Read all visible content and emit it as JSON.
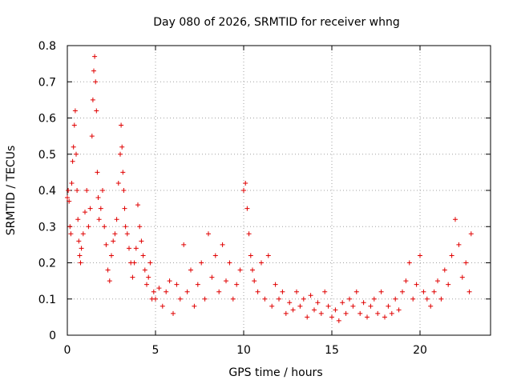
{
  "chart_data": {
    "type": "scatter",
    "title": "Day 080 of 2026, SRMTID for receiver whng",
    "xlabel": "GPS time / hours",
    "ylabel": "SRMTID / TECUs",
    "xlim": [
      0,
      24
    ],
    "ylim": [
      0,
      0.8
    ],
    "xticks": [
      0,
      5,
      10,
      15,
      20
    ],
    "yticks": [
      0,
      0.1,
      0.2,
      0.3,
      0.4,
      0.5,
      0.6,
      0.7,
      0.8
    ],
    "xtick_labels": [
      "0",
      "5",
      "10",
      "15",
      "20"
    ],
    "ytick_labels": [
      "0",
      "0.1",
      "0.2",
      "0.3",
      "0.4",
      "0.5",
      "0.6",
      "0.7",
      "0.8"
    ],
    "grid": true,
    "marker": "plus",
    "color": "#e00000",
    "series": [
      {
        "name": "SRMTID",
        "x": [
          0.0,
          0.05,
          0.1,
          0.15,
          0.2,
          0.25,
          0.3,
          0.35,
          0.4,
          0.45,
          0.5,
          0.55,
          0.6,
          0.65,
          0.7,
          0.75,
          0.8,
          0.9,
          1.0,
          1.1,
          1.2,
          1.3,
          1.4,
          1.45,
          1.5,
          1.55,
          1.6,
          1.65,
          1.7,
          1.75,
          1.8,
          1.9,
          2.0,
          2.1,
          2.2,
          2.3,
          2.4,
          2.5,
          2.6,
          2.7,
          2.8,
          2.9,
          3.0,
          3.05,
          3.1,
          3.15,
          3.2,
          3.25,
          3.3,
          3.4,
          3.5,
          3.6,
          3.7,
          3.8,
          3.9,
          4.0,
          4.1,
          4.2,
          4.3,
          4.4,
          4.5,
          4.6,
          4.7,
          4.8,
          4.9,
          5.0,
          5.2,
          5.4,
          5.6,
          5.8,
          6.0,
          6.2,
          6.4,
          6.6,
          6.8,
          7.0,
          7.2,
          7.4,
          7.6,
          7.8,
          8.0,
          8.2,
          8.4,
          8.6,
          8.8,
          9.0,
          9.2,
          9.4,
          9.6,
          9.8,
          10.0,
          10.1,
          10.2,
          10.3,
          10.4,
          10.5,
          10.6,
          10.8,
          11.0,
          11.2,
          11.4,
          11.6,
          11.8,
          12.0,
          12.2,
          12.4,
          12.6,
          12.8,
          13.0,
          13.2,
          13.4,
          13.6,
          13.8,
          14.0,
          14.2,
          14.4,
          14.6,
          14.8,
          15.0,
          15.2,
          15.4,
          15.6,
          15.8,
          16.0,
          16.2,
          16.4,
          16.6,
          16.8,
          17.0,
          17.2,
          17.4,
          17.6,
          17.8,
          18.0,
          18.2,
          18.4,
          18.6,
          18.8,
          19.0,
          19.2,
          19.4,
          19.6,
          19.8,
          20.0,
          20.2,
          20.4,
          20.6,
          20.8,
          21.0,
          21.2,
          21.4,
          21.6,
          21.8,
          22.0,
          22.2,
          22.4,
          22.6,
          22.8,
          22.9
        ],
        "y": [
          0.38,
          0.4,
          0.37,
          0.3,
          0.28,
          0.42,
          0.48,
          0.52,
          0.58,
          0.62,
          0.5,
          0.4,
          0.32,
          0.26,
          0.22,
          0.2,
          0.24,
          0.28,
          0.34,
          0.4,
          0.3,
          0.35,
          0.55,
          0.65,
          0.73,
          0.77,
          0.7,
          0.62,
          0.45,
          0.38,
          0.32,
          0.35,
          0.4,
          0.3,
          0.25,
          0.18,
          0.15,
          0.22,
          0.26,
          0.28,
          0.32,
          0.42,
          0.5,
          0.58,
          0.52,
          0.45,
          0.4,
          0.35,
          0.3,
          0.28,
          0.24,
          0.2,
          0.16,
          0.2,
          0.24,
          0.36,
          0.3,
          0.26,
          0.22,
          0.18,
          0.14,
          0.16,
          0.2,
          0.1,
          0.12,
          0.1,
          0.13,
          0.08,
          0.12,
          0.15,
          0.06,
          0.14,
          0.1,
          0.25,
          0.12,
          0.18,
          0.08,
          0.14,
          0.2,
          0.1,
          0.28,
          0.16,
          0.22,
          0.12,
          0.25,
          0.15,
          0.2,
          0.1,
          0.14,
          0.18,
          0.4,
          0.42,
          0.35,
          0.28,
          0.22,
          0.18,
          0.15,
          0.12,
          0.2,
          0.1,
          0.22,
          0.08,
          0.14,
          0.1,
          0.12,
          0.06,
          0.09,
          0.07,
          0.12,
          0.08,
          0.1,
          0.05,
          0.11,
          0.07,
          0.09,
          0.06,
          0.12,
          0.08,
          0.05,
          0.07,
          0.04,
          0.09,
          0.06,
          0.1,
          0.08,
          0.12,
          0.06,
          0.09,
          0.05,
          0.08,
          0.1,
          0.06,
          0.12,
          0.05,
          0.08,
          0.06,
          0.1,
          0.07,
          0.12,
          0.15,
          0.2,
          0.1,
          0.14,
          0.22,
          0.12,
          0.1,
          0.08,
          0.12,
          0.15,
          0.1,
          0.18,
          0.14,
          0.22,
          0.32,
          0.25,
          0.16,
          0.2,
          0.12,
          0.28
        ]
      }
    ]
  }
}
